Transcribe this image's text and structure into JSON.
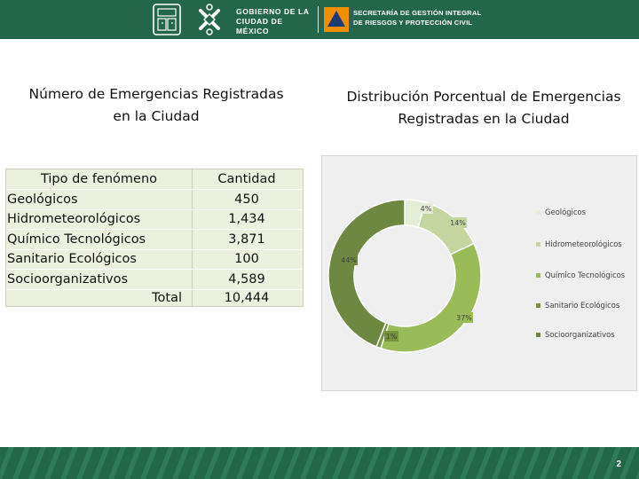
{
  "header": {
    "gov_text_line1": "GOBIERNO DE LA",
    "gov_text_line2": "CIUDAD DE MÉXICO",
    "sec_text_line1": "SECRETARÍA DE GESTIÓN INTEGRAL",
    "sec_text_line2": "DE RIESGOS Y PROTECCIÓN CIVIL",
    "bg_color": "#23664a"
  },
  "table_title": {
    "line1": "Número de Emergencias Registradas",
    "line2": "en la Ciudad"
  },
  "table": {
    "col1_header": "Tipo de fenómeno",
    "col2_header": "Cantidad",
    "rows": [
      {
        "tipo": "Geológicos",
        "cantidad": "450"
      },
      {
        "tipo": "Hidrometeorológicos",
        "cantidad": "1,434"
      },
      {
        "tipo": "Químico Tecnológicos",
        "cantidad": "3,871"
      },
      {
        "tipo": "Sanitario Ecológicos",
        "cantidad": "100"
      },
      {
        "tipo": "Socio­organizativos",
        "cantidad": "4,589"
      }
    ],
    "total_label": "Total",
    "total_value": "10,444"
  },
  "chart_data": {
    "type": "pie",
    "donut": true,
    "title": "Distribución Porcentual de Emergencias Registradas en la Ciudad",
    "title_line1": "Distribución Porcentual de Emergencias",
    "title_line2": "Registradas en la Ciudad",
    "legend_position": "right",
    "categories": [
      "Geológicos",
      "Hidrometeorológicos",
      "Químico Tecnológicos",
      "Sanitario Ecológicos",
      "Socioorganizativos"
    ],
    "values": [
      450,
      1434,
      3871,
      100,
      4589
    ],
    "labels": [
      "4%",
      "14%",
      "37%",
      "1%",
      "44%"
    ],
    "colors": [
      "#e6edd7",
      "#c4d69f",
      "#9bbb59",
      "#77933c",
      "#6e8841"
    ]
  },
  "page_number": "2"
}
